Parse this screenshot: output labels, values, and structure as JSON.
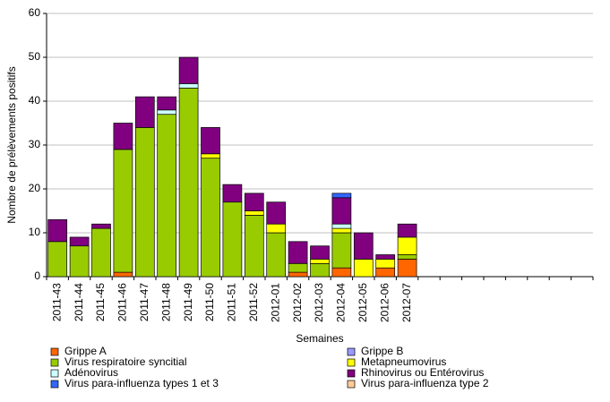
{
  "chart_data": {
    "type": "stacked_bar",
    "y_label": "Nombre de prélèvements positifs",
    "x_label": "Semaines",
    "categories": [
      "2011-43",
      "2011-44",
      "2011-45",
      "2011-46",
      "2011-47",
      "2011-48",
      "2011-49",
      "2011-50",
      "2011-51",
      "2011-52",
      "2012-01",
      "2012-02",
      "2012-03",
      "2012-04",
      "2012-05",
      "2012-06",
      "2012-07",
      null,
      null,
      null,
      null,
      null,
      null,
      null,
      null
    ],
    "ylim": [
      0,
      60
    ],
    "yticks": [
      0,
      10,
      20,
      30,
      40,
      50,
      60
    ],
    "grid": true,
    "series": [
      {
        "name": "Grippe A",
        "color": "#ff6600",
        "values": [
          0,
          0,
          0,
          1,
          0,
          0,
          0,
          0,
          0,
          0,
          0,
          1,
          0,
          2,
          0,
          2,
          4,
          null,
          null,
          null,
          null,
          null,
          null,
          null,
          null
        ]
      },
      {
        "name": "Grippe B",
        "color": "#9999ff",
        "values": [
          0,
          0,
          0,
          0,
          0,
          0,
          0,
          0,
          0,
          0,
          0,
          0,
          0,
          0,
          0,
          0,
          0,
          null,
          null,
          null,
          null,
          null,
          null,
          null,
          null
        ]
      },
      {
        "name": "Virus respiratoire syncitial",
        "color": "#99cc00",
        "values": [
          8,
          7,
          11,
          28,
          34,
          37,
          43,
          27,
          17,
          14,
          10,
          2,
          3,
          8,
          0,
          0,
          1,
          null,
          null,
          null,
          null,
          null,
          null,
          null,
          null
        ]
      },
      {
        "name": "Metapneumovirus",
        "color": "#ffff00",
        "values": [
          0,
          0,
          0,
          0,
          0,
          0,
          0,
          1,
          0,
          1,
          2,
          0,
          1,
          1,
          4,
          2,
          4,
          null,
          null,
          null,
          null,
          null,
          null,
          null,
          null
        ]
      },
      {
        "name": "Adénovirus",
        "color": "#ccffff",
        "values": [
          0,
          0,
          0,
          0,
          0,
          1,
          1,
          0,
          0,
          0,
          0,
          0,
          0,
          1,
          0,
          0,
          0,
          null,
          null,
          null,
          null,
          null,
          null,
          null,
          null
        ]
      },
      {
        "name": "Rhinovirus ou Entérovirus",
        "color": "#800080",
        "values": [
          5,
          2,
          1,
          6,
          7,
          3,
          6,
          6,
          4,
          4,
          5,
          5,
          3,
          6,
          6,
          1,
          3,
          null,
          null,
          null,
          null,
          null,
          null,
          null,
          null
        ]
      },
      {
        "name": "Virus para-influenza types 1 et 3",
        "color": "#3366ff",
        "values": [
          0,
          0,
          0,
          0,
          0,
          0,
          0,
          0,
          0,
          0,
          0,
          0,
          0,
          1,
          0,
          0,
          0,
          null,
          null,
          null,
          null,
          null,
          null,
          null,
          null
        ]
      },
      {
        "name": "Virus para-influenza type 2",
        "color": "#ffcc99",
        "values": [
          0,
          0,
          0,
          0,
          0,
          0,
          0,
          0,
          0,
          0,
          0,
          0,
          0,
          0,
          0,
          0,
          0,
          null,
          null,
          null,
          null,
          null,
          null,
          null,
          null
        ]
      }
    ]
  }
}
